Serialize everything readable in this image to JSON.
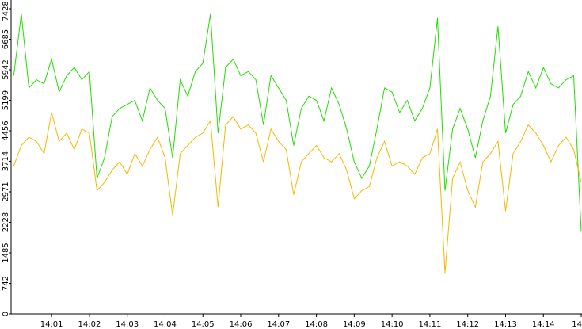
{
  "chart_data": {
    "type": "line",
    "x": [
      0,
      0.2,
      0.4,
      0.6,
      0.8,
      1,
      1.2,
      1.4,
      1.6,
      1.8,
      2,
      2.2,
      2.4,
      2.6,
      2.8,
      3,
      3.2,
      3.4,
      3.6,
      3.8,
      4,
      4.2,
      4.4,
      4.6,
      4.8,
      5,
      5.2,
      5.4,
      5.6,
      5.8,
      6,
      6.2,
      6.4,
      6.6,
      6.8,
      7,
      7.2,
      7.4,
      7.6,
      7.8,
      8,
      8.2,
      8.4,
      8.6,
      8.8,
      9,
      9.2,
      9.4,
      9.6,
      9.8,
      10,
      10.2,
      10.4,
      10.6,
      10.8,
      11,
      11.2,
      11.4,
      11.6,
      11.8,
      12,
      12.2,
      12.4,
      12.6,
      12.8,
      13,
      13.2,
      13.4,
      13.6,
      13.8,
      14,
      14.2,
      14.4,
      14.6,
      14.8,
      15
    ],
    "series": [
      {
        "color": "#22dd00",
        "values": [
          5800,
          7300,
          5500,
          5700,
          5600,
          6200,
          5400,
          5800,
          6000,
          5700,
          5900,
          3300,
          3800,
          4800,
          5000,
          5100,
          5200,
          4700,
          5500,
          5200,
          5000,
          3800,
          5700,
          5300,
          5900,
          6100,
          7300,
          4400,
          6000,
          6200,
          5800,
          5900,
          5700,
          4600,
          5800,
          5500,
          5200,
          4100,
          5000,
          5300,
          5200,
          4700,
          5500,
          5100,
          4500,
          3700,
          3300,
          3600,
          4500,
          5500,
          5400,
          4900,
          5200,
          4700,
          5000,
          5500,
          7200,
          3000,
          4500,
          5000,
          4500,
          3800,
          4700,
          5300,
          7000,
          4400,
          5100,
          5300,
          5900,
          5500,
          6000,
          5600,
          5500,
          5700,
          5800,
          2000
        ]
      },
      {
        "color": "#f5b800",
        "values": [
          3600,
          4100,
          4300,
          4200,
          3900,
          4900,
          4200,
          4400,
          4000,
          4500,
          4400,
          3000,
          3200,
          3500,
          3700,
          3400,
          3900,
          3600,
          4000,
          4300,
          3800,
          2400,
          3900,
          4100,
          4300,
          4400,
          4700,
          2600,
          4600,
          4800,
          4500,
          4600,
          4400,
          3700,
          4500,
          4200,
          4000,
          2900,
          3700,
          3900,
          4100,
          3800,
          3700,
          3900,
          3500,
          2800,
          3000,
          3100,
          3800,
          4200,
          3600,
          3700,
          3600,
          3400,
          3800,
          3900,
          4500,
          1000,
          3300,
          3700,
          3000,
          2600,
          3700,
          3900,
          4200,
          2500,
          3900,
          4200,
          4600,
          4400,
          4100,
          3700,
          4100,
          4300,
          4000,
          3200
        ]
      }
    ],
    "xlim": [
      -0.07,
      15.02
    ],
    "xticks": [
      {
        "value": 1,
        "label": "14:01"
      },
      {
        "value": 2,
        "label": "14:02"
      },
      {
        "value": 3,
        "label": "14:03"
      },
      {
        "value": 4,
        "label": "14:04"
      },
      {
        "value": 5,
        "label": "14:05"
      },
      {
        "value": 6,
        "label": "14:06"
      },
      {
        "value": 7,
        "label": "14:07"
      },
      {
        "value": 8,
        "label": "14:08"
      },
      {
        "value": 9,
        "label": "14:09"
      },
      {
        "value": 10,
        "label": "14:10"
      },
      {
        "value": 11,
        "label": "14:11"
      },
      {
        "value": 12,
        "label": "14:12"
      },
      {
        "value": 13,
        "label": "14:13"
      },
      {
        "value": 14,
        "label": "14:14"
      },
      {
        "value": 15,
        "label": "14"
      }
    ],
    "ylim": [
      0,
      7640
    ],
    "yticks": [
      0,
      742,
      1485,
      2228,
      2971,
      3714,
      4456,
      5199,
      5942,
      6685,
      7428
    ]
  }
}
